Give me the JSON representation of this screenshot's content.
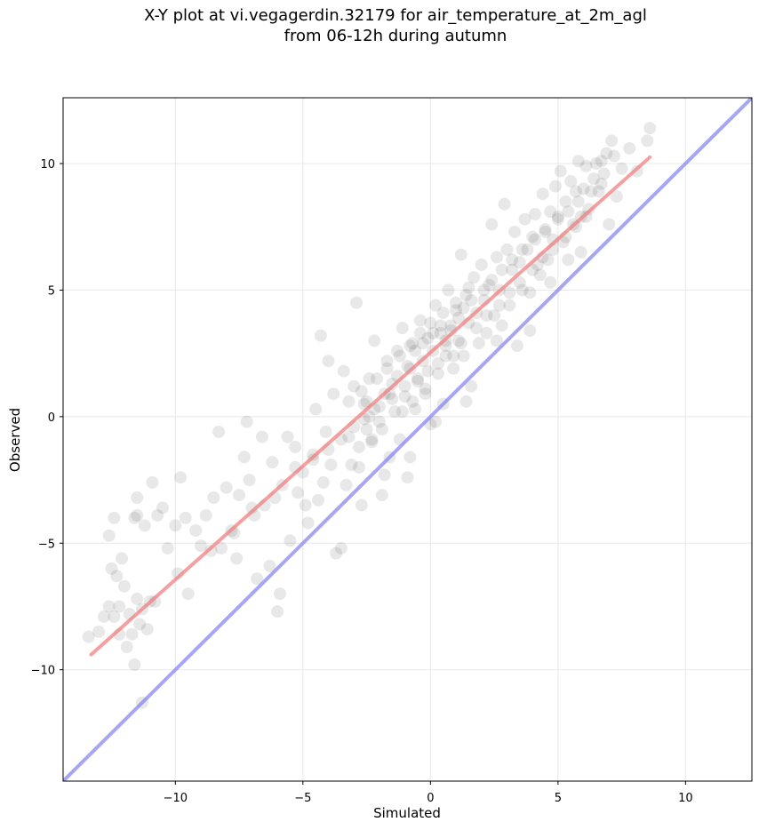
{
  "chart_data": {
    "type": "scatter",
    "title": "X-Y plot at vi.vegagerdin.32179 for air_temperature_at_2m_agl",
    "subtitle": "from 06-12h during autumn",
    "xlabel": "Simulated",
    "ylabel": "Observed",
    "xlim": [
      -14.4,
      12.6
    ],
    "ylim": [
      -14.4,
      12.6
    ],
    "xticks": [
      -10,
      -5,
      0,
      5,
      10
    ],
    "yticks": [
      -10,
      -5,
      0,
      5,
      10
    ],
    "xtick_labels": [
      "−10",
      "−5",
      "0",
      "5",
      "10"
    ],
    "ytick_labels": [
      "−10",
      "−5",
      "0",
      "5",
      "10"
    ],
    "grid": true,
    "point_color": "#000000",
    "point_opacity": 0.09,
    "fit_line": {
      "color": "#f08080",
      "x": [
        -13.3,
        8.6
      ],
      "y": [
        -9.4,
        10.25
      ]
    },
    "identity_line": {
      "color": "#8080f0",
      "x": [
        -14.4,
        12.6
      ],
      "y": [
        -14.4,
        12.6
      ]
    },
    "points": [
      [
        -13.4,
        -8.7
      ],
      [
        -13.0,
        -8.5
      ],
      [
        -12.8,
        -7.9
      ],
      [
        -12.6,
        -7.5
      ],
      [
        -12.5,
        -6.0
      ],
      [
        -12.4,
        -7.9
      ],
      [
        -12.3,
        -6.3
      ],
      [
        -12.2,
        -7.5
      ],
      [
        -12.1,
        -5.6
      ],
      [
        -12.0,
        -6.7
      ],
      [
        -11.8,
        -7.8
      ],
      [
        -11.7,
        -8.6
      ],
      [
        -11.6,
        -4.0
      ],
      [
        -11.5,
        -3.9
      ],
      [
        -11.5,
        -7.2
      ],
      [
        -11.4,
        -8.2
      ],
      [
        -11.3,
        -7.6
      ],
      [
        -11.2,
        -4.3
      ],
      [
        -11.1,
        -8.4
      ],
      [
        -11.0,
        -7.3
      ],
      [
        -10.9,
        -2.6
      ],
      [
        -10.7,
        -3.9
      ],
      [
        -10.5,
        -3.6
      ],
      [
        -10.3,
        -5.2
      ],
      [
        -11.6,
        -9.8
      ],
      [
        -11.3,
        -11.3
      ],
      [
        -12.4,
        -4.0
      ],
      [
        -12.6,
        -4.7
      ],
      [
        -11.5,
        -3.2
      ],
      [
        -11.9,
        -9.1
      ],
      [
        -10.0,
        -4.3
      ],
      [
        -9.8,
        -2.4
      ],
      [
        -9.6,
        -4.0
      ],
      [
        -9.5,
        -7.0
      ],
      [
        -9.2,
        -4.5
      ],
      [
        -9.0,
        -5.1
      ],
      [
        -8.8,
        -3.9
      ],
      [
        -8.5,
        -3.2
      ],
      [
        -8.3,
        -0.6
      ],
      [
        -8.2,
        -5.2
      ],
      [
        -8.0,
        -2.8
      ],
      [
        -7.8,
        -4.5
      ],
      [
        -7.6,
        -5.6
      ],
      [
        -7.5,
        -3.1
      ],
      [
        -7.3,
        -1.6
      ],
      [
        -7.2,
        -0.2
      ],
      [
        -7.1,
        -2.5
      ],
      [
        -7.0,
        -3.6
      ],
      [
        -6.8,
        -6.4
      ],
      [
        -6.6,
        -0.8
      ],
      [
        -6.5,
        -3.5
      ],
      [
        -6.3,
        -5.9
      ],
      [
        -6.2,
        -1.8
      ],
      [
        -6.0,
        -7.7
      ],
      [
        -5.9,
        -7.0
      ],
      [
        -5.8,
        -2.7
      ],
      [
        -5.6,
        -0.8
      ],
      [
        -5.5,
        -4.9
      ],
      [
        -5.3,
        -1.2
      ],
      [
        -5.2,
        -3.0
      ],
      [
        -5.0,
        -2.2
      ],
      [
        -4.9,
        -3.5
      ],
      [
        -4.8,
        -4.2
      ],
      [
        -4.6,
        -1.5
      ],
      [
        -4.5,
        0.3
      ],
      [
        -4.4,
        -3.3
      ],
      [
        -4.3,
        3.2
      ],
      [
        -4.2,
        -2.6
      ],
      [
        -4.0,
        2.2
      ],
      [
        -3.9,
        -1.9
      ],
      [
        -3.8,
        0.9
      ],
      [
        -3.7,
        -5.4
      ],
      [
        -3.5,
        -5.2
      ],
      [
        -3.4,
        1.8
      ],
      [
        -3.3,
        -2.7
      ],
      [
        -3.2,
        -0.8
      ],
      [
        -3.0,
        1.2
      ],
      [
        -2.9,
        4.5
      ],
      [
        -2.8,
        -2.0
      ],
      [
        -2.7,
        -3.5
      ],
      [
        -2.6,
        0.5
      ],
      [
        -2.5,
        -0.5
      ],
      [
        -2.4,
        1.5
      ],
      [
        -2.3,
        -1.0
      ],
      [
        -2.2,
        3.0
      ],
      [
        -2.0,
        -0.2
      ],
      [
        -1.9,
        -3.1
      ],
      [
        -1.8,
        0.9
      ],
      [
        -1.7,
        2.2
      ],
      [
        -1.6,
        -1.6
      ],
      [
        -1.5,
        1.3
      ],
      [
        -1.4,
        0.2
      ],
      [
        -1.3,
        2.6
      ],
      [
        -1.2,
        -0.9
      ],
      [
        -1.1,
        3.5
      ],
      [
        -1.0,
        0.8
      ],
      [
        -0.9,
        -2.4
      ],
      [
        -0.8,
        1.9
      ],
      [
        -0.7,
        2.9
      ],
      [
        -0.6,
        0.3
      ],
      [
        -0.5,
        1.4
      ],
      [
        -0.4,
        3.8
      ],
      [
        -0.3,
        2.2
      ],
      [
        -0.2,
        0.9
      ],
      [
        -0.1,
        3.1
      ],
      [
        0.0,
        -0.3
      ],
      [
        0.1,
        2.6
      ],
      [
        0.2,
        4.4
      ],
      [
        0.3,
        1.7
      ],
      [
        0.4,
        3.3
      ],
      [
        0.5,
        0.5
      ],
      [
        0.6,
        2.8
      ],
      [
        0.7,
        5.0
      ],
      [
        0.8,
        3.6
      ],
      [
        0.9,
        1.9
      ],
      [
        1.0,
        4.2
      ],
      [
        1.1,
        3.0
      ],
      [
        1.2,
        6.4
      ],
      [
        1.3,
        2.4
      ],
      [
        1.4,
        4.8
      ],
      [
        1.5,
        3.7
      ],
      [
        1.6,
        1.2
      ],
      [
        1.7,
        5.5
      ],
      [
        1.8,
        4.1
      ],
      [
        1.9,
        2.9
      ],
      [
        2.0,
        6.0
      ],
      [
        2.1,
        4.6
      ],
      [
        2.2,
        3.3
      ],
      [
        2.3,
        5.2
      ],
      [
        2.4,
        7.6
      ],
      [
        2.5,
        4.0
      ],
      [
        2.6,
        6.3
      ],
      [
        2.7,
        5.0
      ],
      [
        2.8,
        3.6
      ],
      [
        2.9,
        8.4
      ],
      [
        3.0,
        6.6
      ],
      [
        3.1,
        4.4
      ],
      [
        3.2,
        5.8
      ],
      [
        3.3,
        7.3
      ],
      [
        3.4,
        2.8
      ],
      [
        3.5,
        6.1
      ],
      [
        3.6,
        5.0
      ],
      [
        3.7,
        7.8
      ],
      [
        3.8,
        6.6
      ],
      [
        3.9,
        4.9
      ],
      [
        4.0,
        7.1
      ],
      [
        4.1,
        8.0
      ],
      [
        4.2,
        6.0
      ],
      [
        4.3,
        5.6
      ],
      [
        4.4,
        8.8
      ],
      [
        4.5,
        7.3
      ],
      [
        4.6,
        6.2
      ],
      [
        4.7,
        8.1
      ],
      [
        4.8,
        7.0
      ],
      [
        4.9,
        9.1
      ],
      [
        5.0,
        7.9
      ],
      [
        5.1,
        9.7
      ],
      [
        5.2,
        6.9
      ],
      [
        5.3,
        8.5
      ],
      [
        5.4,
        6.2
      ],
      [
        5.5,
        9.3
      ],
      [
        5.6,
        7.6
      ],
      [
        5.7,
        8.9
      ],
      [
        5.8,
        10.1
      ],
      [
        5.9,
        7.9
      ],
      [
        6.0,
        9.0
      ],
      [
        6.1,
        9.9
      ],
      [
        6.2,
        8.2
      ],
      [
        6.4,
        9.4
      ],
      [
        6.5,
        10.0
      ],
      [
        6.6,
        8.9
      ],
      [
        6.8,
        9.6
      ],
      [
        6.9,
        10.4
      ],
      [
        7.0,
        7.6
      ],
      [
        7.1,
        10.9
      ],
      [
        7.3,
        8.7
      ],
      [
        7.5,
        9.8
      ],
      [
        7.8,
        10.6
      ],
      [
        8.1,
        9.7
      ],
      [
        8.5,
        10.9
      ],
      [
        8.6,
        11.4
      ],
      [
        6.7,
        10.1
      ],
      [
        7.2,
        10.3
      ],
      [
        5.9,
        6.5
      ],
      [
        4.7,
        5.3
      ],
      [
        3.9,
        3.4
      ],
      [
        2.6,
        3.0
      ],
      [
        1.4,
        0.6
      ],
      [
        0.2,
        -0.2
      ],
      [
        -0.8,
        -1.6
      ],
      [
        -1.8,
        -2.3
      ],
      [
        -3.1,
        -1.9
      ],
      [
        -4.1,
        -0.6
      ],
      [
        -5.3,
        -2.0
      ],
      [
        -6.1,
        -3.2
      ],
      [
        -6.9,
        -3.9
      ],
      [
        -7.7,
        -4.6
      ],
      [
        -8.6,
        -5.3
      ],
      [
        -9.9,
        -6.2
      ],
      [
        -10.8,
        -7.3
      ],
      [
        -12.2,
        -8.6
      ],
      [
        -2.6,
        -0.1
      ],
      [
        -2.5,
        0.6
      ],
      [
        -2.2,
        0.3
      ],
      [
        -1.6,
        0.9
      ],
      [
        -1.3,
        1.6
      ],
      [
        -0.9,
        2.0
      ],
      [
        -0.6,
        2.6
      ],
      [
        -0.3,
        2.9
      ],
      [
        0.1,
        3.3
      ],
      [
        0.4,
        3.6
      ],
      [
        0.6,
        3.0
      ],
      [
        0.8,
        3.4
      ],
      [
        1.1,
        3.9
      ],
      [
        1.3,
        4.3
      ],
      [
        1.6,
        4.6
      ],
      [
        2.1,
        5.0
      ],
      [
        2.4,
        5.4
      ],
      [
        2.8,
        5.8
      ],
      [
        3.2,
        6.2
      ],
      [
        3.6,
        6.6
      ],
      [
        4.1,
        7.0
      ],
      [
        4.5,
        7.4
      ],
      [
        5.0,
        7.8
      ],
      [
        5.4,
        8.1
      ],
      [
        5.8,
        8.5
      ],
      [
        6.3,
        8.9
      ],
      [
        6.7,
        9.2
      ],
      [
        0.3,
        2.1
      ],
      [
        0.6,
        2.4
      ],
      [
        -0.1,
        1.8
      ],
      [
        -0.5,
        1.5
      ],
      [
        -1.0,
        1.2
      ],
      [
        -1.5,
        0.7
      ],
      [
        -2.0,
        0.4
      ],
      [
        -2.4,
        0.0
      ],
      [
        -3.0,
        -0.4
      ],
      [
        -3.5,
        -0.9
      ],
      [
        -4.0,
        -1.3
      ],
      [
        -4.6,
        -1.7
      ],
      [
        1.8,
        3.5
      ],
      [
        2.2,
        4.0
      ],
      [
        2.7,
        4.4
      ],
      [
        3.1,
        4.9
      ],
      [
        3.5,
        5.3
      ],
      [
        4.0,
        5.8
      ],
      [
        4.4,
        6.3
      ],
      [
        4.8,
        6.6
      ],
      [
        5.3,
        7.1
      ],
      [
        5.7,
        7.5
      ],
      [
        6.1,
        7.9
      ],
      [
        0.0,
        3.7
      ],
      [
        0.5,
        4.1
      ],
      [
        1.0,
        4.5
      ],
      [
        1.5,
        5.1
      ],
      [
        -0.4,
        3.3
      ],
      [
        -0.8,
        2.8
      ],
      [
        -1.2,
        2.4
      ],
      [
        -1.7,
        1.9
      ],
      [
        -2.1,
        1.5
      ],
      [
        -2.7,
        1.0
      ],
      [
        -3.2,
        0.6
      ],
      [
        0.9,
        2.4
      ],
      [
        1.2,
        2.9
      ],
      [
        -0.2,
        1.1
      ],
      [
        -0.7,
        0.6
      ],
      [
        -1.1,
        0.2
      ],
      [
        -1.9,
        -0.5
      ],
      [
        -2.3,
        -0.9
      ],
      [
        -2.8,
        -1.2
      ]
    ]
  }
}
